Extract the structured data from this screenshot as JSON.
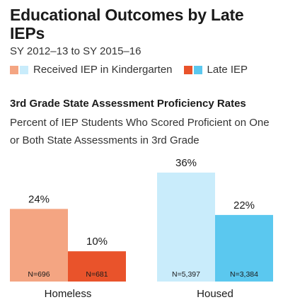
{
  "header": {
    "title": "Educational Outcomes by Late IEPs",
    "subtitle": "SY 2012–13 to SY 2015–16"
  },
  "legend": {
    "received_label": "Received IEP in Kindergarten",
    "late_label": "Late IEP"
  },
  "colors": {
    "homeless_kindergarten": "#f4a582",
    "housed_kindergarten": "#c9ecfb",
    "homeless_late": "#e9532b",
    "housed_late": "#5bc8ef"
  },
  "chart_data": {
    "type": "bar",
    "title": "3rd Grade State Assessment Proficiency Rates",
    "subtitle": "Percent of IEP Students Who Scored Proficient on One or Both State Assessments in 3rd Grade",
    "categories": [
      "Homeless",
      "Housed"
    ],
    "series": [
      {
        "name": "Received IEP in Kindergarten",
        "values": [
          24,
          36
        ],
        "value_labels": [
          "24%",
          "36%"
        ],
        "n_labels": [
          "N=696",
          "N=5,397"
        ]
      },
      {
        "name": "Late IEP",
        "values": [
          10,
          22
        ],
        "value_labels": [
          "10%",
          "22%"
        ],
        "n_labels": [
          "N=681",
          "N=3,384"
        ]
      }
    ],
    "ylim": [
      0,
      36
    ],
    "grid": false,
    "legend": "top-left"
  }
}
